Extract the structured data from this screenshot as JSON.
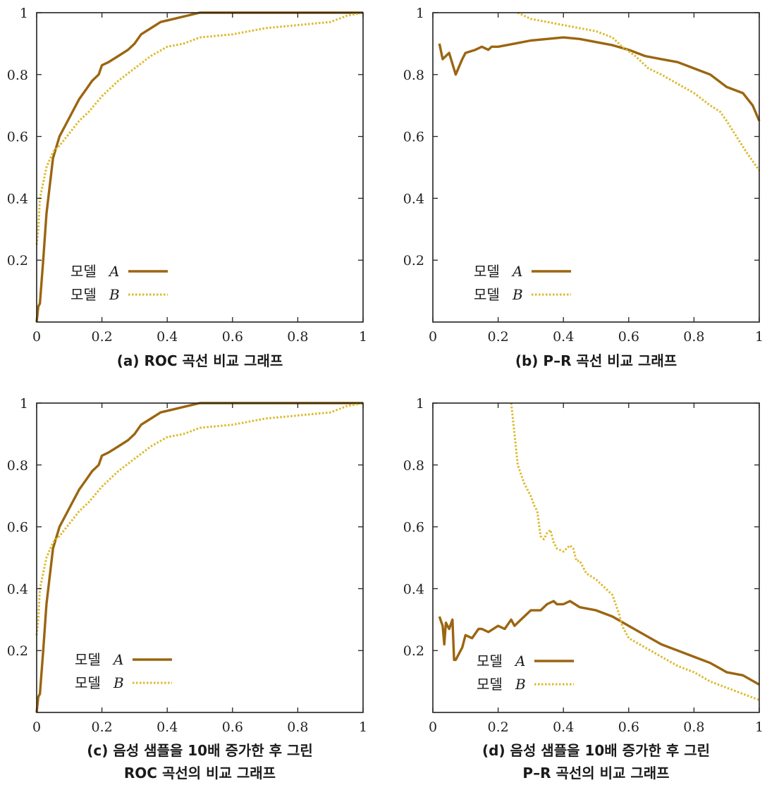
{
  "chart_data": [
    {
      "type": "line",
      "caption": [
        "(a) ROC 곡선 비교 그래프"
      ],
      "xlim": [
        0,
        1
      ],
      "ylim": [
        0,
        1
      ],
      "xticks": [
        0,
        0.2,
        0.4,
        0.6,
        0.8,
        1
      ],
      "xtick_labels": [
        "0",
        "0.2",
        "0.4",
        "0.6",
        "0.8",
        "1"
      ],
      "yticks": [
        0.2,
        0.4,
        0.6,
        0.8,
        1
      ],
      "ytick_labels": [
        "0.2",
        "0.4",
        "0.6",
        "0.8",
        "1"
      ],
      "legend": "bottom-left",
      "series": [
        {
          "name": "모델 A",
          "legend_word": "모델",
          "legend_var": "A",
          "color": "#9B6510",
          "style": "solid",
          "x": [
            0,
            0.005,
            0.01,
            0.02,
            0.03,
            0.05,
            0.07,
            0.09,
            0.11,
            0.13,
            0.15,
            0.17,
            0.19,
            0.2,
            0.22,
            0.25,
            0.28,
            0.3,
            0.32,
            0.35,
            0.38,
            0.42,
            0.46,
            0.5,
            0.6,
            0.8,
            1
          ],
          "y": [
            0,
            0.05,
            0.06,
            0.2,
            0.35,
            0.53,
            0.6,
            0.64,
            0.68,
            0.72,
            0.75,
            0.78,
            0.8,
            0.83,
            0.84,
            0.86,
            0.88,
            0.9,
            0.93,
            0.95,
            0.97,
            0.98,
            0.99,
            1,
            1,
            1,
            1
          ]
        },
        {
          "name": "모델 B",
          "legend_word": "모델",
          "legend_var": "B",
          "color": "#DDB92A",
          "style": "dotted",
          "x": [
            0,
            0.005,
            0.01,
            0.02,
            0.03,
            0.05,
            0.07,
            0.1,
            0.13,
            0.16,
            0.2,
            0.25,
            0.3,
            0.35,
            0.4,
            0.45,
            0.5,
            0.6,
            0.7,
            0.8,
            0.9,
            0.95,
            1
          ],
          "y": [
            0.25,
            0.3,
            0.4,
            0.45,
            0.5,
            0.55,
            0.57,
            0.61,
            0.65,
            0.68,
            0.73,
            0.78,
            0.82,
            0.86,
            0.89,
            0.9,
            0.92,
            0.93,
            0.95,
            0.96,
            0.97,
            0.99,
            1
          ]
        }
      ]
    },
    {
      "type": "line",
      "caption": [
        "(b) P–R 곡선 비교 그래프"
      ],
      "xlim": [
        0,
        1
      ],
      "ylim": [
        0,
        1
      ],
      "xticks": [
        0,
        0.2,
        0.4,
        0.6,
        0.8,
        1
      ],
      "xtick_labels": [
        "0",
        "0.2",
        "0.4",
        "0.6",
        "0.8",
        "1"
      ],
      "yticks": [
        0.2,
        0.4,
        0.6,
        0.8,
        1
      ],
      "ytick_labels": [
        "0.2",
        "0.4",
        "0.6",
        "0.8",
        "1"
      ],
      "legend": "bottom-left",
      "series": [
        {
          "name": "모델 A",
          "legend_word": "모델",
          "legend_var": "A",
          "color": "#9B6510",
          "style": "solid",
          "x": [
            0.02,
            0.03,
            0.04,
            0.05,
            0.07,
            0.09,
            0.1,
            0.13,
            0.15,
            0.17,
            0.18,
            0.2,
            0.25,
            0.3,
            0.35,
            0.4,
            0.45,
            0.5,
            0.55,
            0.6,
            0.65,
            0.7,
            0.75,
            0.8,
            0.85,
            0.9,
            0.95,
            0.98,
            1
          ],
          "y": [
            0.9,
            0.85,
            0.86,
            0.87,
            0.8,
            0.85,
            0.87,
            0.88,
            0.89,
            0.88,
            0.89,
            0.89,
            0.9,
            0.91,
            0.915,
            0.92,
            0.915,
            0.905,
            0.895,
            0.88,
            0.86,
            0.85,
            0.84,
            0.82,
            0.8,
            0.76,
            0.74,
            0.7,
            0.65
          ]
        },
        {
          "name": "모델 B",
          "legend_word": "모델",
          "legend_var": "B",
          "color": "#DDB92A",
          "style": "dotted",
          "x": [
            0.26,
            0.3,
            0.35,
            0.4,
            0.45,
            0.5,
            0.55,
            0.58,
            0.62,
            0.66,
            0.7,
            0.75,
            0.8,
            0.85,
            0.88,
            0.9,
            0.93,
            0.96,
            1
          ],
          "y": [
            1,
            0.98,
            0.97,
            0.96,
            0.95,
            0.94,
            0.92,
            0.89,
            0.86,
            0.82,
            0.8,
            0.77,
            0.74,
            0.7,
            0.68,
            0.65,
            0.6,
            0.55,
            0.49
          ]
        }
      ]
    },
    {
      "type": "line",
      "caption": [
        "(c) 음성 샘플을 10배 증가한 후 그린",
        "ROC 곡선의 비교 그래프"
      ],
      "xlim": [
        0,
        1
      ],
      "ylim": [
        0,
        1
      ],
      "xticks": [
        0,
        0.2,
        0.4,
        0.6,
        0.8,
        1
      ],
      "xtick_labels": [
        "0",
        "0.2",
        "0.4",
        "0.6",
        "0.8",
        "1"
      ],
      "yticks": [
        0.2,
        0.4,
        0.6,
        0.8,
        1
      ],
      "ytick_labels": [
        "0.2",
        "0.4",
        "0.6",
        "0.8",
        "1"
      ],
      "legend": "bottom-left",
      "series": [
        {
          "name": "모델 A",
          "legend_word": "모델",
          "legend_var": "A",
          "color": "#9B6510",
          "style": "solid",
          "x": [
            0,
            0.005,
            0.01,
            0.02,
            0.03,
            0.05,
            0.07,
            0.09,
            0.11,
            0.13,
            0.15,
            0.17,
            0.19,
            0.2,
            0.22,
            0.25,
            0.28,
            0.3,
            0.32,
            0.35,
            0.38,
            0.42,
            0.46,
            0.5,
            0.6,
            0.8,
            1
          ],
          "y": [
            0,
            0.05,
            0.06,
            0.2,
            0.35,
            0.53,
            0.6,
            0.64,
            0.68,
            0.72,
            0.75,
            0.78,
            0.8,
            0.83,
            0.84,
            0.86,
            0.88,
            0.9,
            0.93,
            0.95,
            0.97,
            0.98,
            0.99,
            1,
            1,
            1,
            1
          ]
        },
        {
          "name": "모델 B",
          "legend_word": "모델",
          "legend_var": "B",
          "color": "#DDB92A",
          "style": "dotted",
          "x": [
            0,
            0.005,
            0.01,
            0.02,
            0.03,
            0.05,
            0.07,
            0.1,
            0.13,
            0.16,
            0.2,
            0.25,
            0.3,
            0.35,
            0.4,
            0.45,
            0.5,
            0.6,
            0.7,
            0.8,
            0.9,
            0.95,
            1
          ],
          "y": [
            0.25,
            0.3,
            0.4,
            0.45,
            0.5,
            0.55,
            0.57,
            0.61,
            0.65,
            0.68,
            0.73,
            0.78,
            0.82,
            0.86,
            0.89,
            0.9,
            0.92,
            0.93,
            0.95,
            0.96,
            0.97,
            0.99,
            1
          ]
        }
      ]
    },
    {
      "type": "line",
      "caption": [
        "(d) 음성 샘플을 10배 증가한 후 그린",
        "P–R 곡선의 비교 그래프"
      ],
      "xlim": [
        0,
        1
      ],
      "ylim": [
        0,
        1
      ],
      "xticks": [
        0,
        0.2,
        0.4,
        0.6,
        0.8,
        1
      ],
      "xtick_labels": [
        "0",
        "0.2",
        "0.4",
        "0.6",
        "0.8",
        "1"
      ],
      "yticks": [
        0.2,
        0.4,
        0.6,
        0.8,
        1
      ],
      "ytick_labels": [
        "0.2",
        "0.4",
        "0.6",
        "0.8",
        "1"
      ],
      "legend": "bottom-left",
      "series": [
        {
          "name": "모델 A",
          "legend_word": "모델",
          "legend_var": "A",
          "color": "#9B6510",
          "style": "solid",
          "x": [
            0.02,
            0.03,
            0.035,
            0.04,
            0.05,
            0.06,
            0.065,
            0.07,
            0.09,
            0.1,
            0.12,
            0.14,
            0.15,
            0.17,
            0.2,
            0.22,
            0.24,
            0.25,
            0.28,
            0.3,
            0.33,
            0.35,
            0.37,
            0.38,
            0.4,
            0.42,
            0.45,
            0.5,
            0.55,
            0.6,
            0.65,
            0.7,
            0.75,
            0.8,
            0.85,
            0.9,
            0.95,
            1
          ],
          "y": [
            0.31,
            0.28,
            0.22,
            0.29,
            0.27,
            0.3,
            0.17,
            0.17,
            0.21,
            0.25,
            0.24,
            0.27,
            0.27,
            0.26,
            0.28,
            0.27,
            0.3,
            0.28,
            0.31,
            0.33,
            0.33,
            0.35,
            0.36,
            0.35,
            0.35,
            0.36,
            0.34,
            0.33,
            0.31,
            0.28,
            0.25,
            0.22,
            0.2,
            0.18,
            0.16,
            0.13,
            0.12,
            0.09
          ]
        },
        {
          "name": "모델 B",
          "legend_word": "모델",
          "legend_var": "B",
          "color": "#DDB92A",
          "style": "dotted",
          "x": [
            0.24,
            0.25,
            0.26,
            0.28,
            0.3,
            0.31,
            0.32,
            0.33,
            0.34,
            0.35,
            0.36,
            0.37,
            0.38,
            0.4,
            0.42,
            0.43,
            0.44,
            0.45,
            0.47,
            0.5,
            0.55,
            0.57,
            0.58,
            0.6,
            0.65,
            0.7,
            0.75,
            0.8,
            0.85,
            0.9,
            0.95,
            1
          ],
          "y": [
            1,
            0.9,
            0.8,
            0.74,
            0.7,
            0.67,
            0.65,
            0.57,
            0.56,
            0.58,
            0.59,
            0.55,
            0.53,
            0.52,
            0.54,
            0.53,
            0.49,
            0.49,
            0.45,
            0.43,
            0.38,
            0.32,
            0.28,
            0.24,
            0.21,
            0.18,
            0.15,
            0.13,
            0.1,
            0.08,
            0.06,
            0.04
          ]
        }
      ]
    }
  ]
}
